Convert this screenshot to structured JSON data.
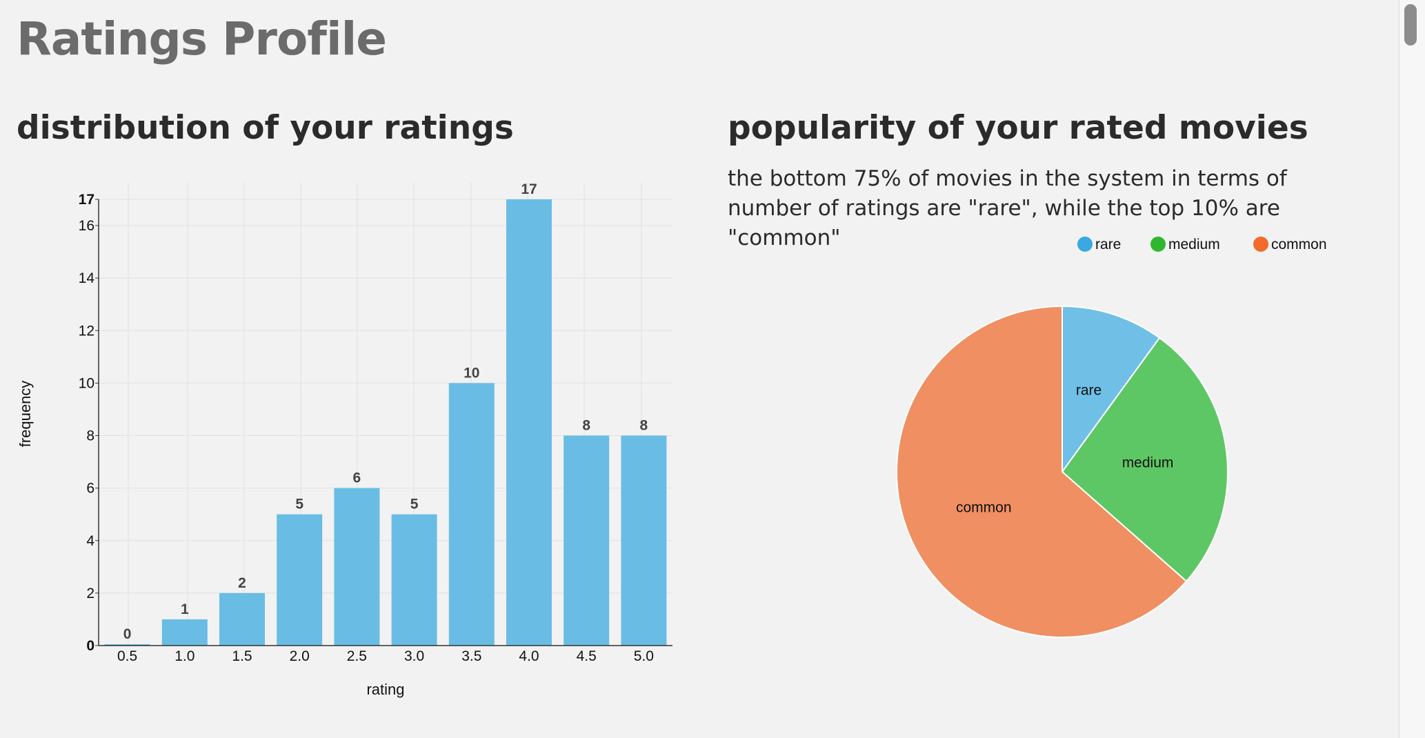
{
  "page": {
    "title": "Ratings Profile"
  },
  "histogram_section": {
    "title": "distribution of your ratings"
  },
  "pie_section": {
    "title": "popularity of your rated movies",
    "description": "the bottom 75% of movies in the system in terms of number of ratings are \"rare\", while the top 10% are \"common\""
  },
  "colors": {
    "bar": "#69bde5",
    "legend_rare": "#3aa8e2",
    "legend_medium": "#2fb72f",
    "legend_common": "#f26b2a",
    "slice_rare": "#70bfe6",
    "slice_medium": "#5ec765",
    "slice_common": "#ef8f62"
  },
  "chart_data": [
    {
      "type": "bar",
      "title": "distribution of your ratings",
      "xlabel": "rating",
      "ylabel": "frequency",
      "categories": [
        "0.5",
        "1.0",
        "1.5",
        "2.0",
        "2.5",
        "3.0",
        "3.5",
        "4.0",
        "4.5",
        "5.0"
      ],
      "values": [
        0,
        1,
        2,
        5,
        6,
        5,
        10,
        17,
        8,
        8
      ],
      "data_labels": [
        "0",
        "1",
        "2",
        "5",
        "6",
        "5",
        "10",
        "17",
        "8",
        "8"
      ],
      "ylim": [
        0,
        17
      ],
      "yticks": [
        "0",
        "2",
        "4",
        "6",
        "8",
        "10",
        "12",
        "14",
        "16",
        "17"
      ],
      "grid": true
    },
    {
      "type": "pie",
      "title": "popularity of your rated movies",
      "legend": [
        "rare",
        "medium",
        "common"
      ],
      "legend_position": "top-right",
      "slices": [
        {
          "label": "rare",
          "value": 10
        },
        {
          "label": "medium",
          "value": 26.5
        },
        {
          "label": "common",
          "value": 63.5
        }
      ]
    }
  ]
}
